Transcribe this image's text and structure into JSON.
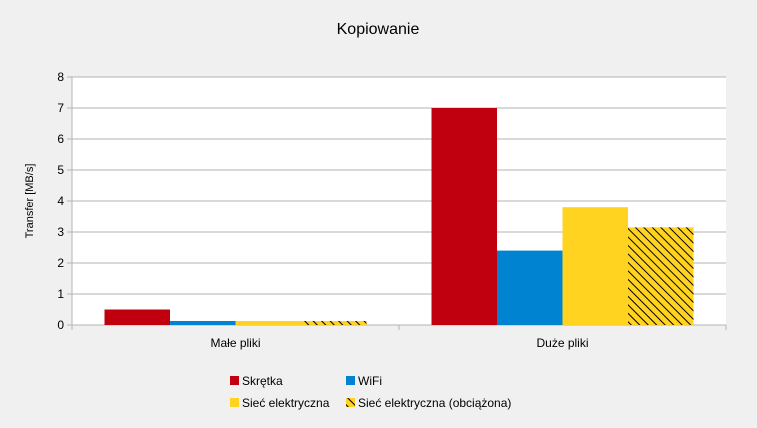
{
  "chart_data": {
    "type": "bar",
    "title": "Kopiowanie",
    "xlabel": "",
    "ylabel": "Transfer [MB/s]",
    "ylim": [
      0,
      8
    ],
    "yticks": [
      0,
      1,
      2,
      3,
      4,
      5,
      6,
      7,
      8
    ],
    "grid": true,
    "legend_position": "bottom",
    "categories": [
      "Małe pliki",
      "Duże pliki"
    ],
    "series": [
      {
        "name": "Skrętka",
        "values": [
          0.5,
          7.0
        ],
        "color": "#c0000f",
        "pattern": "solid"
      },
      {
        "name": "WiFi",
        "values": [
          0.13,
          2.4
        ],
        "color": "#0084d1",
        "pattern": "solid"
      },
      {
        "name": "Sieć elektryczna",
        "values": [
          0.13,
          3.8
        ],
        "color": "#ffd320",
        "pattern": "solid"
      },
      {
        "name": "Sieć elektryczna (obciążona)",
        "values": [
          0.13,
          3.15
        ],
        "color": "#ffd320",
        "pattern": "hatched"
      }
    ]
  }
}
